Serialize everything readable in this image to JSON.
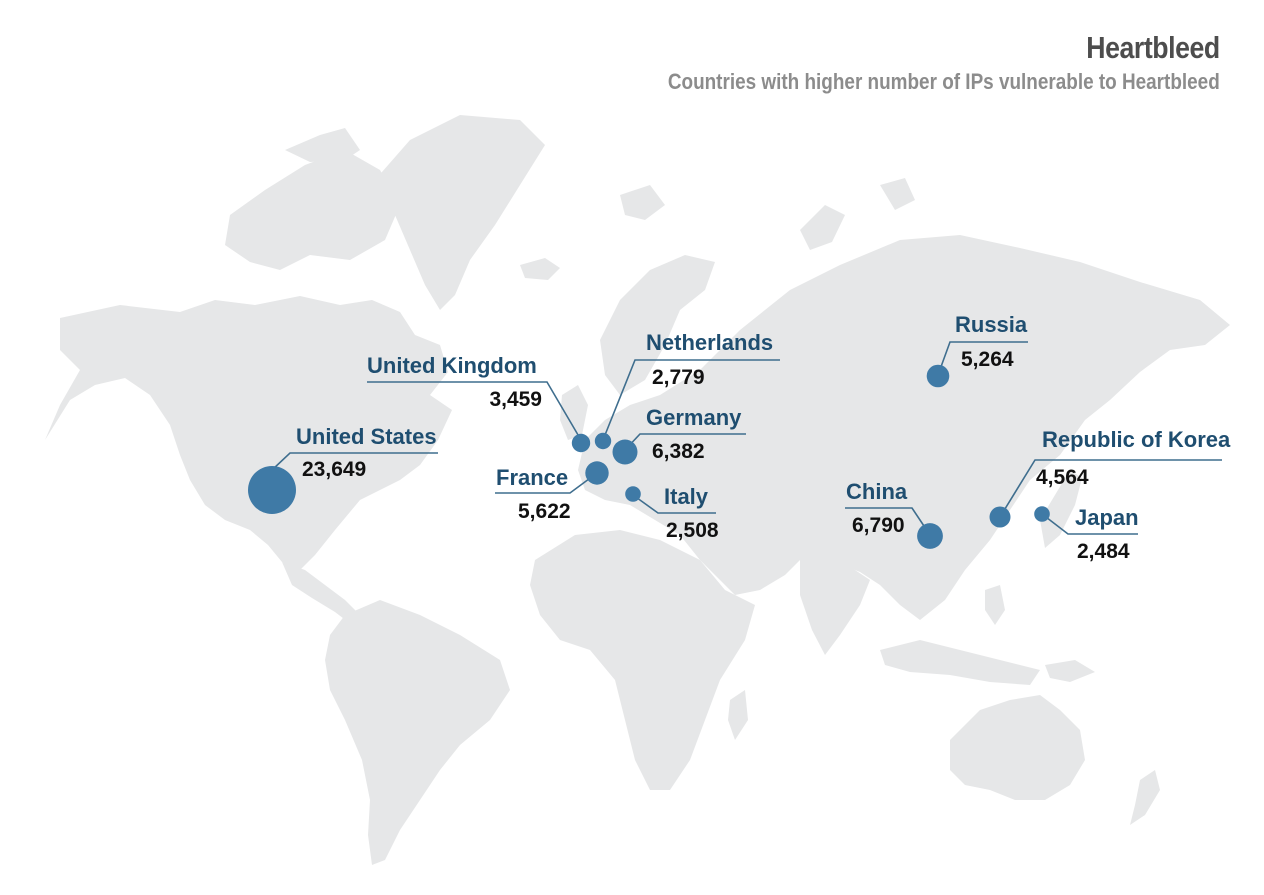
{
  "header": {
    "title": "Heartbleed",
    "subtitle": "Countries with higher number of IPs vulnerable to Heartbleed"
  },
  "colors": {
    "land": "#e6e7e8",
    "bubble": "#3f7aa6",
    "country_label": "#1f4e70",
    "value_label": "#111111",
    "title": "#4d4d4d",
    "subtitle": "#8c8c8c"
  },
  "chart_data": {
    "type": "bubble-map",
    "title": "Heartbleed",
    "subtitle": "Countries with higher number of IPs vulnerable to Heartbleed",
    "countries": [
      {
        "name": "United States",
        "value": 23649,
        "label": "23,649"
      },
      {
        "name": "United Kingdom",
        "value": 3459,
        "label": "3,459"
      },
      {
        "name": "Netherlands",
        "value": 2779,
        "label": "2,779"
      },
      {
        "name": "Germany",
        "value": 6382,
        "label": "6,382"
      },
      {
        "name": "France",
        "value": 5622,
        "label": "5,622"
      },
      {
        "name": "Italy",
        "value": 2508,
        "label": "2,508"
      },
      {
        "name": "Russia",
        "value": 5264,
        "label": "5,264"
      },
      {
        "name": "China",
        "value": 6790,
        "label": "6,790"
      },
      {
        "name": "Republic of Korea",
        "value": 4564,
        "label": "4,564"
      },
      {
        "name": "Japan",
        "value": 2484,
        "label": "2,484"
      }
    ]
  }
}
